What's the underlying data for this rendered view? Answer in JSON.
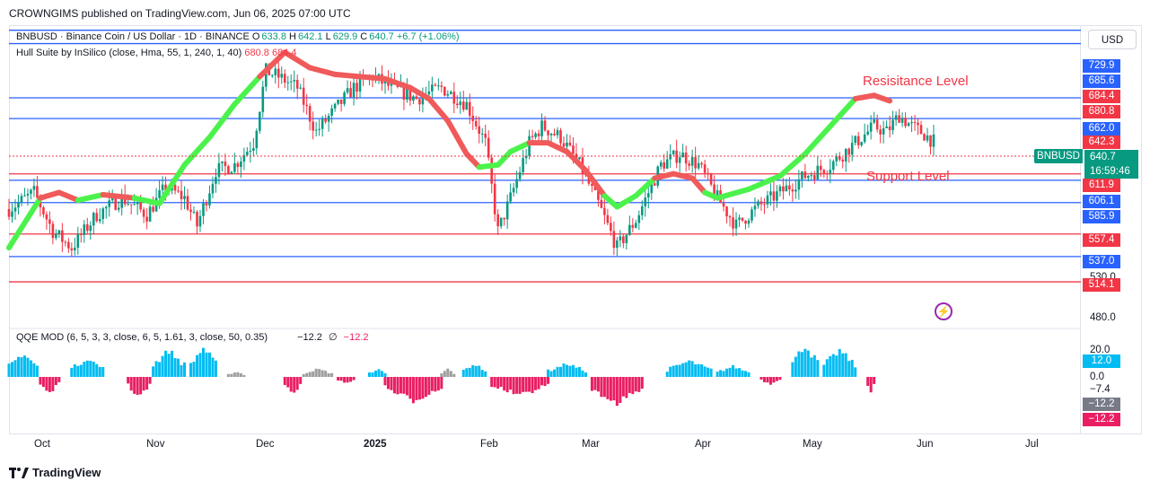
{
  "header": {
    "published_by": "CROWNGIMS published on TradingView.com, Jun 06, 2025 07:00 UTC"
  },
  "legend": {
    "symbol": "BNBUSD · Binance Coin / US Dollar · 1D · BINANCE",
    "o_label": "O",
    "o": "633.8",
    "h_label": "H",
    "h": "642.1",
    "l_label": "L",
    "l": "629.9",
    "c_label": "C",
    "c": "640.7",
    "change": "+6.7 (+1.06%)",
    "hull_label": "Hull Suite by InSilico (close, Hma, 55, 1, 240, 1, 40)",
    "hull_v1": "680.8",
    "hull_v2": "684.4",
    "qqe_label": "QQE MOD (6, 5, 3, 3, close, 6, 5, 1.61, 3, close, 50, 0.35)",
    "qqe_v1": "−12.2",
    "qqe_sym": "∅",
    "qqe_v2": "−12.2"
  },
  "annotations": {
    "resistance": "Resisitance Level",
    "support": "Support Level"
  },
  "price_axis": {
    "currency": "USD",
    "symbol_tag": "BNBUSD",
    "last_price": "640.7",
    "countdown": "16:59:46",
    "labels": [
      {
        "text": "729.9",
        "kind": "blue"
      },
      {
        "text": "685.6",
        "kind": "blue"
      },
      {
        "text": "684.4",
        "kind": "red"
      },
      {
        "text": "680.8",
        "kind": "red"
      },
      {
        "text": "662.0",
        "kind": "blue"
      },
      {
        "text": "642.3",
        "kind": "red"
      },
      {
        "text": "611.9",
        "kind": "red"
      },
      {
        "text": "606.1",
        "kind": "blue"
      },
      {
        "text": "585.9",
        "kind": "blue"
      },
      {
        "text": "557.4",
        "kind": "red"
      },
      {
        "text": "537.0",
        "kind": "blue"
      },
      {
        "text": "530.0",
        "kind": "plain"
      },
      {
        "text": "514.1",
        "kind": "red"
      },
      {
        "text": "480.0",
        "kind": "plain"
      }
    ]
  },
  "qqe_axis": {
    "labels": [
      {
        "text": "20.0",
        "kind": "plain"
      },
      {
        "text": "12.0",
        "kind": "blue"
      },
      {
        "text": "0.0",
        "kind": "plain"
      },
      {
        "text": "−7.4",
        "kind": "plain"
      },
      {
        "text": "−12.2",
        "kind": "gray"
      },
      {
        "text": "−12.2",
        "kind": "pink"
      }
    ]
  },
  "time_axis": [
    "Oct",
    "Nov",
    "Dec",
    "2025",
    "Feb",
    "Mar",
    "Apr",
    "May",
    "Jun",
    "Jul"
  ],
  "footer": {
    "brand": "TradingView"
  },
  "colors": {
    "up": "#089981",
    "down": "#f23645",
    "blue_line": "#2962ff",
    "red_line": "#f23645",
    "hull_up": "#4cf24c",
    "hull_down": "#f05a5a",
    "qqe_up": "#00bcf2",
    "qqe_down": "#e91e63",
    "qqe_neutral": "#9e9e9e"
  },
  "chart_data": {
    "type": "candlestick",
    "y_range": [
      480,
      745
    ],
    "horizontal_levels": [
      {
        "value": 742,
        "color": "blue"
      },
      {
        "value": 729.9,
        "color": "blue"
      },
      {
        "value": 680.8,
        "color": "blue"
      },
      {
        "value": 662.0,
        "color": "blue"
      },
      {
        "value": 611.9,
        "color": "red"
      },
      {
        "value": 606.1,
        "color": "blue"
      },
      {
        "value": 585.9,
        "color": "blue"
      },
      {
        "value": 557.4,
        "color": "red"
      },
      {
        "value": 537.0,
        "color": "blue"
      },
      {
        "value": 514.1,
        "color": "red"
      }
    ],
    "price_path": [
      [
        0,
        580
      ],
      [
        8,
        595
      ],
      [
        14,
        560
      ],
      [
        20,
        545
      ],
      [
        28,
        575
      ],
      [
        36,
        590
      ],
      [
        44,
        575
      ],
      [
        50,
        600
      ],
      [
        56,
        590
      ],
      [
        60,
        565
      ],
      [
        66,
        615
      ],
      [
        72,
        620
      ],
      [
        78,
        640
      ],
      [
        82,
        705
      ],
      [
        86,
        700
      ],
      [
        92,
        690
      ],
      [
        98,
        650
      ],
      [
        104,
        670
      ],
      [
        110,
        690
      ],
      [
        116,
        700
      ],
      [
        122,
        690
      ],
      [
        130,
        680
      ],
      [
        138,
        690
      ],
      [
        146,
        675
      ],
      [
        152,
        640
      ],
      [
        156,
        560
      ],
      [
        160,
        590
      ],
      [
        166,
        640
      ],
      [
        170,
        655
      ],
      [
        176,
        645
      ],
      [
        182,
        620
      ],
      [
        188,
        585
      ],
      [
        194,
        545
      ],
      [
        200,
        570
      ],
      [
        208,
        620
      ],
      [
        214,
        630
      ],
      [
        220,
        620
      ],
      [
        226,
        590
      ],
      [
        232,
        565
      ],
      [
        238,
        580
      ],
      [
        246,
        595
      ],
      [
        254,
        610
      ],
      [
        262,
        620
      ],
      [
        270,
        640
      ],
      [
        276,
        655
      ],
      [
        280,
        650
      ],
      [
        284,
        665
      ],
      [
        288,
        655
      ],
      [
        292,
        648
      ],
      [
        295,
        641
      ]
    ],
    "hull_path": [
      [
        0,
        545,
        "up"
      ],
      [
        10,
        590,
        "up"
      ],
      [
        16,
        595,
        "down"
      ],
      [
        22,
        588,
        "down"
      ],
      [
        30,
        593,
        "up"
      ],
      [
        40,
        590,
        "down"
      ],
      [
        48,
        585,
        "up"
      ],
      [
        56,
        620,
        "up"
      ],
      [
        64,
        645,
        "up"
      ],
      [
        72,
        675,
        "up"
      ],
      [
        80,
        700,
        "up"
      ],
      [
        88,
        722,
        "down"
      ],
      [
        96,
        708,
        "down"
      ],
      [
        104,
        702,
        "down"
      ],
      [
        112,
        700,
        "down"
      ],
      [
        120,
        698,
        "down"
      ],
      [
        128,
        690,
        "down"
      ],
      [
        134,
        680,
        "down"
      ],
      [
        140,
        660,
        "down"
      ],
      [
        146,
        630,
        "down"
      ],
      [
        150,
        618,
        "down"
      ],
      [
        156,
        620,
        "up"
      ],
      [
        160,
        632,
        "up"
      ],
      [
        166,
        640,
        "up"
      ],
      [
        172,
        640,
        "down"
      ],
      [
        178,
        632,
        "down"
      ],
      [
        184,
        615,
        "down"
      ],
      [
        190,
        592,
        "down"
      ],
      [
        194,
        582,
        "up"
      ],
      [
        200,
        592,
        "up"
      ],
      [
        206,
        608,
        "up"
      ],
      [
        212,
        612,
        "down"
      ],
      [
        218,
        608,
        "down"
      ],
      [
        222,
        595,
        "down"
      ],
      [
        226,
        590,
        "up"
      ],
      [
        236,
        598,
        "up"
      ],
      [
        246,
        610,
        "up"
      ],
      [
        254,
        630,
        "up"
      ],
      [
        262,
        655,
        "up"
      ],
      [
        270,
        680,
        "up"
      ],
      [
        276,
        683,
        "down"
      ],
      [
        281,
        678,
        "down"
      ]
    ],
    "qqe_histogram_range": [
      -30,
      30
    ],
    "qqe_segments": [
      {
        "from": 0,
        "to": 9,
        "value": 18,
        "color": "up"
      },
      {
        "from": 10,
        "to": 16,
        "value": -12,
        "color": "down"
      },
      {
        "from": 20,
        "to": 30,
        "value": 14,
        "color": "up"
      },
      {
        "from": 38,
        "to": 45,
        "value": -15,
        "color": "down"
      },
      {
        "from": 46,
        "to": 56,
        "value": 20,
        "color": "up"
      },
      {
        "from": 58,
        "to": 66,
        "value": 22,
        "color": "up"
      },
      {
        "from": 70,
        "to": 75,
        "value": 4,
        "color": "neutral"
      },
      {
        "from": 88,
        "to": 93,
        "value": -13,
        "color": "down"
      },
      {
        "from": 94,
        "to": 103,
        "value": 6,
        "color": "neutral"
      },
      {
        "from": 105,
        "to": 110,
        "value": -5,
        "color": "down"
      },
      {
        "from": 115,
        "to": 120,
        "value": 6,
        "color": "up"
      },
      {
        "from": 120,
        "to": 138,
        "value": -18,
        "color": "down"
      },
      {
        "from": 138,
        "to": 142,
        "value": 6,
        "color": "neutral"
      },
      {
        "from": 145,
        "to": 152,
        "value": 10,
        "color": "up"
      },
      {
        "from": 154,
        "to": 172,
        "value": -14,
        "color": "down"
      },
      {
        "from": 172,
        "to": 184,
        "value": 10,
        "color": "up"
      },
      {
        "from": 186,
        "to": 202,
        "value": -20,
        "color": "down"
      },
      {
        "from": 210,
        "to": 224,
        "value": 12,
        "color": "up"
      },
      {
        "from": 226,
        "to": 236,
        "value": 8,
        "color": "up"
      },
      {
        "from": 240,
        "to": 246,
        "value": -6,
        "color": "down"
      },
      {
        "from": 250,
        "to": 258,
        "value": 24,
        "color": "up"
      },
      {
        "from": 260,
        "to": 270,
        "value": 20,
        "color": "up"
      },
      {
        "from": 274,
        "to": 276,
        "value": -12,
        "color": "down"
      }
    ]
  }
}
